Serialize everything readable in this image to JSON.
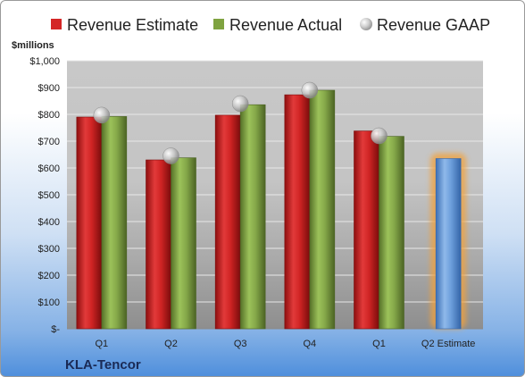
{
  "chart_data": {
    "type": "bar",
    "title": "",
    "ylabel": "$millions",
    "company": "KLA-Tencor",
    "categories": [
      "Q1",
      "Q2",
      "Q3",
      "Q4",
      "Q1",
      "Q2 Estimate"
    ],
    "ylim": [
      0,
      1000
    ],
    "yticks": [
      {
        "value": 0,
        "label": "$-"
      },
      {
        "value": 100,
        "label": "$100"
      },
      {
        "value": 200,
        "label": "$200"
      },
      {
        "value": 300,
        "label": "$300"
      },
      {
        "value": 400,
        "label": "$400"
      },
      {
        "value": 500,
        "label": "$500"
      },
      {
        "value": 600,
        "label": "$600"
      },
      {
        "value": 700,
        "label": "$700"
      },
      {
        "value": 800,
        "label": "$800"
      },
      {
        "value": 900,
        "label": "$900"
      },
      {
        "value": 1000,
        "label": "$1,000"
      }
    ],
    "series": [
      {
        "name": "Revenue Estimate",
        "type": "bar",
        "color": "#d42626",
        "values": [
          790,
          630,
          797,
          873,
          738,
          null
        ]
      },
      {
        "name": "Revenue Actual",
        "type": "bar",
        "color": "#7fa340",
        "values": [
          792,
          638,
          836,
          890,
          718,
          null
        ]
      },
      {
        "name": "Revenue GAAP",
        "type": "scatter",
        "color": "#b0b0b0",
        "values": [
          797,
          645,
          840,
          890,
          720,
          null
        ]
      },
      {
        "name": "Q2 Estimate",
        "type": "bar",
        "color": "#6b9bd6",
        "highlight": true,
        "values": [
          null,
          null,
          null,
          null,
          null,
          635
        ]
      }
    ],
    "legend": "top",
    "grid": true
  }
}
